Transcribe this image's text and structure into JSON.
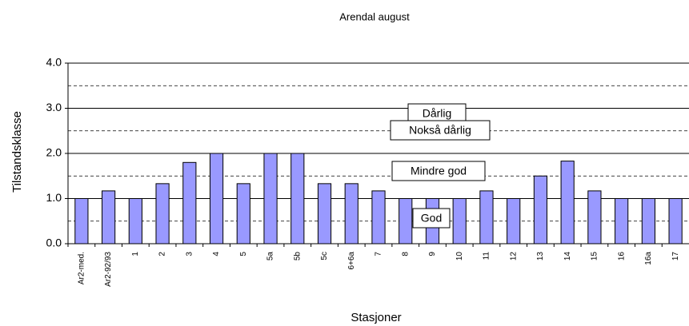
{
  "chart_data": {
    "type": "bar",
    "title": "Arendal august",
    "x_label": "Stasjoner",
    "y_label": "Tilstandsklasse",
    "categories": [
      "Ar2-med.",
      "Ar2-92/93",
      "1",
      "2",
      "3",
      "4",
      "5",
      "5a",
      "5b",
      "5c",
      "6+6a",
      "7",
      "8",
      "9",
      "10",
      "11",
      "12",
      "13",
      "14",
      "15",
      "16",
      "16a",
      "17"
    ],
    "values": [
      1.0,
      1.17,
      1.0,
      1.33,
      1.8,
      2.0,
      1.33,
      2.0,
      2.0,
      1.33,
      1.33,
      1.17,
      1.0,
      1.0,
      1.0,
      1.17,
      1.0,
      1.5,
      1.83,
      1.17,
      1.0,
      1.0,
      1.0
    ],
    "color": "#9999ff",
    "ylim": [
      0,
      4
    ],
    "yticks": [
      {
        "value": 0,
        "label": "0.0"
      },
      {
        "value": 1,
        "label": "1.0"
      },
      {
        "value": 2,
        "label": "2.0"
      },
      {
        "value": 3,
        "label": "3.0"
      },
      {
        "value": 4,
        "label": "4.0"
      }
    ],
    "grid": true,
    "reference_lines": [
      0.5,
      1.5,
      2.5,
      3.5
    ],
    "annotations": [
      "Dårlig",
      "Nokså dårlig",
      "Mindre god",
      "God"
    ]
  }
}
